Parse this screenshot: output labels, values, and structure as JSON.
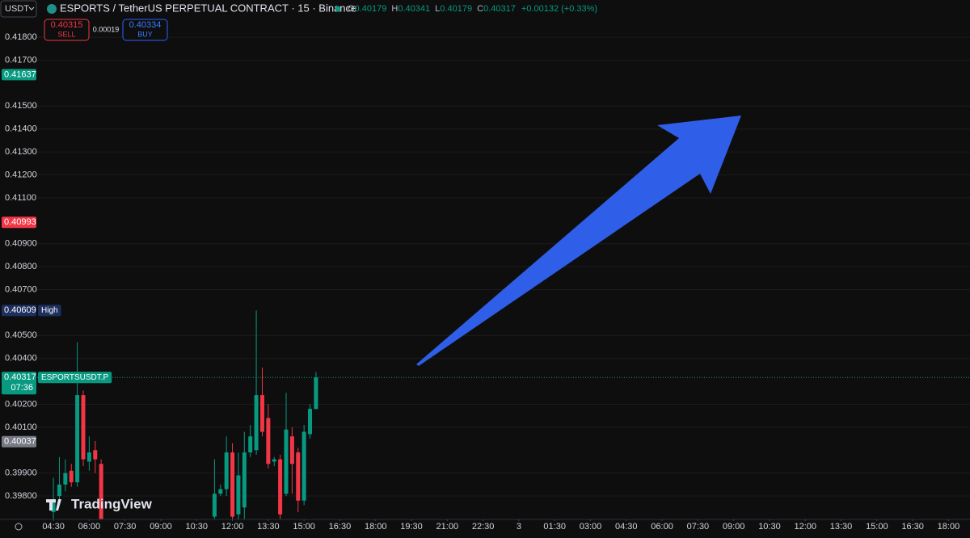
{
  "header": {
    "symbol_selector": "USDT",
    "title": "ESPORTS / TetherUS PERPETUAL CONTRACT · 15 · Binance",
    "ohlc": {
      "o_label": "O",
      "o": 0.40179,
      "h_label": "H",
      "h": 0.40341,
      "l_label": "L",
      "l": 0.40179,
      "c_label": "C",
      "c": 0.40317,
      "change": "+0.00132 (+0.33%)"
    }
  },
  "trade": {
    "sell_price": 0.40315,
    "sell_label": "SELL",
    "spread": 0.00019,
    "buy_price": 0.40334,
    "buy_label": "BUY"
  },
  "branding": "TradingView",
  "chart_data": {
    "type": "candlestick",
    "x": [
      4.5,
      4.75,
      5,
      5.25,
      5.5,
      5.75,
      6,
      6.25,
      6.5,
      11.25,
      11.5,
      11.75,
      12,
      12.25,
      12.5,
      12.75,
      13,
      13.25,
      13.5,
      13.75,
      14,
      14.25,
      14.5,
      14.75,
      15,
      15.25,
      15.5
    ],
    "open": [
      0.3973,
      0.398,
      0.3985,
      0.3991,
      0.3986,
      0.4024,
      0.3995,
      0.4,
      0.3994,
      0.3971,
      0.3981,
      0.3983,
      0.3999,
      0.3972,
      0.3975,
      0.3999,
      0.4,
      0.4024,
      0.4014,
      0.3995,
      0.3996,
      0.3981,
      0.4006,
      0.3999,
      0.3978,
      0.4007,
      0.40179
    ],
    "high": [
      0.3988,
      0.3997,
      0.3996,
      0.3994,
      0.4047,
      0.4026,
      0.4006,
      0.4004,
      0.3996,
      0.3996,
      0.3985,
      0.4006,
      0.4003,
      0.3999,
      0.4008,
      0.4011,
      0.40609,
      0.4036,
      0.402,
      0.3997,
      0.3998,
      0.4025,
      0.401,
      0.4001,
      0.4011,
      0.402,
      0.40341
    ],
    "low": [
      0.397,
      0.3978,
      0.3982,
      0.3984,
      0.3984,
      0.3993,
      0.3991,
      0.399,
      0.3969,
      0.3969,
      0.398,
      0.398,
      0.3969,
      0.3969,
      0.3969,
      0.3997,
      0.3998,
      0.4006,
      0.3992,
      0.3993,
      0.397,
      0.398,
      0.3981,
      0.3973,
      0.3976,
      0.4005,
      0.40179
    ],
    "close": [
      0.3978,
      0.3985,
      0.399,
      0.3986,
      0.4024,
      0.3996,
      0.3999,
      0.3996,
      0.397,
      0.3981,
      0.3983,
      0.3999,
      0.3971,
      0.3989,
      0.3999,
      0.4006,
      0.4024,
      0.4008,
      0.3994,
      0.3996,
      0.3972,
      0.4009,
      0.3994,
      0.3978,
      0.4008,
      0.4018,
      0.40317
    ],
    "up_color": "#089981",
    "down_color": "#f23645",
    "xlim": [
      3.82,
      42.9
    ],
    "ylim": [
      0.39698,
      0.41885
    ],
    "grid": true,
    "xticks": [
      {
        "value": 4.5,
        "label": "04:30"
      },
      {
        "value": 6,
        "label": "06:00"
      },
      {
        "value": 7.5,
        "label": "07:30"
      },
      {
        "value": 9,
        "label": "09:00"
      },
      {
        "value": 10.5,
        "label": "10:30"
      },
      {
        "value": 12,
        "label": "12:00"
      },
      {
        "value": 13.5,
        "label": "13:30"
      },
      {
        "value": 15,
        "label": "15:00"
      },
      {
        "value": 16.5,
        "label": "16:30"
      },
      {
        "value": 18,
        "label": "18:00"
      },
      {
        "value": 19.5,
        "label": "19:30"
      },
      {
        "value": 21,
        "label": "21:00"
      },
      {
        "value": 22.5,
        "label": "22:30"
      },
      {
        "value": 24,
        "label": "3"
      },
      {
        "value": 25.5,
        "label": "01:30"
      },
      {
        "value": 27,
        "label": "03:00"
      },
      {
        "value": 28.5,
        "label": "04:30"
      },
      {
        "value": 30,
        "label": "06:00"
      },
      {
        "value": 31.5,
        "label": "07:30"
      },
      {
        "value": 33,
        "label": "09:00"
      },
      {
        "value": 34.5,
        "label": "10:30"
      },
      {
        "value": 36,
        "label": "12:00"
      },
      {
        "value": 37.5,
        "label": "13:30"
      },
      {
        "value": 39,
        "label": "15:00"
      },
      {
        "value": 40.5,
        "label": "16:30"
      },
      {
        "value": 42,
        "label": "18:00"
      }
    ],
    "yticks": [
      {
        "value": 0.418,
        "label": "0.41800"
      },
      {
        "value": 0.417,
        "label": "0.41700"
      },
      {
        "value": 0.415,
        "label": "0.41500"
      },
      {
        "value": 0.414,
        "label": "0.41400"
      },
      {
        "value": 0.413,
        "label": "0.41300"
      },
      {
        "value": 0.412,
        "label": "0.41200"
      },
      {
        "value": 0.411,
        "label": "0.41100"
      },
      {
        "value": 0.409,
        "label": "0.40900"
      },
      {
        "value": 0.408,
        "label": "0.40800"
      },
      {
        "value": 0.407,
        "label": "0.40700"
      },
      {
        "value": 0.405,
        "label": "0.40500"
      },
      {
        "value": 0.404,
        "label": "0.40400"
      },
      {
        "value": 0.402,
        "label": "0.40200"
      },
      {
        "value": 0.401,
        "label": "0.40100"
      },
      {
        "value": 0.399,
        "label": "0.39900"
      },
      {
        "value": 0.398,
        "label": "0.39800"
      }
    ],
    "price_markers": [
      {
        "value": 0.41637,
        "color": "#089981"
      },
      {
        "value": 0.40993,
        "color": "#f23645"
      },
      {
        "value": 0.40609,
        "color": "#1c2f5e",
        "tag": "High"
      },
      {
        "value": 0.40317,
        "color": "#089981",
        "tag": "ESPORTSUSDT.P",
        "countdown": "07:36"
      },
      {
        "value": 0.40037,
        "color": "#787b86"
      }
    ]
  }
}
